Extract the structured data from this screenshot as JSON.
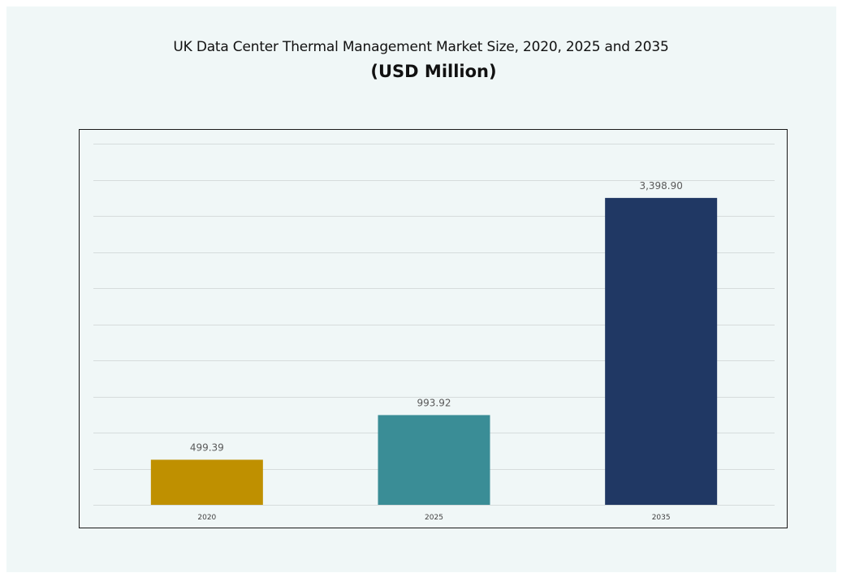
{
  "chart_data": {
    "type": "bar",
    "title": "UK Data Center Thermal Management Market Size, 2020, 2025 and 2035",
    "subtitle": "(USD Million)",
    "xlabel": "",
    "ylabel": "",
    "categories": [
      "2020",
      "2025",
      "2035"
    ],
    "values": [
      499.39,
      993.92,
      3398.9
    ],
    "data_labels": [
      "499.39",
      "993.92",
      "3,398.90"
    ],
    "ylim": [
      0,
      4000
    ],
    "grid": true,
    "legend": "none",
    "colors": [
      "#bf9000",
      "#3a8d96",
      "#203864"
    ]
  }
}
